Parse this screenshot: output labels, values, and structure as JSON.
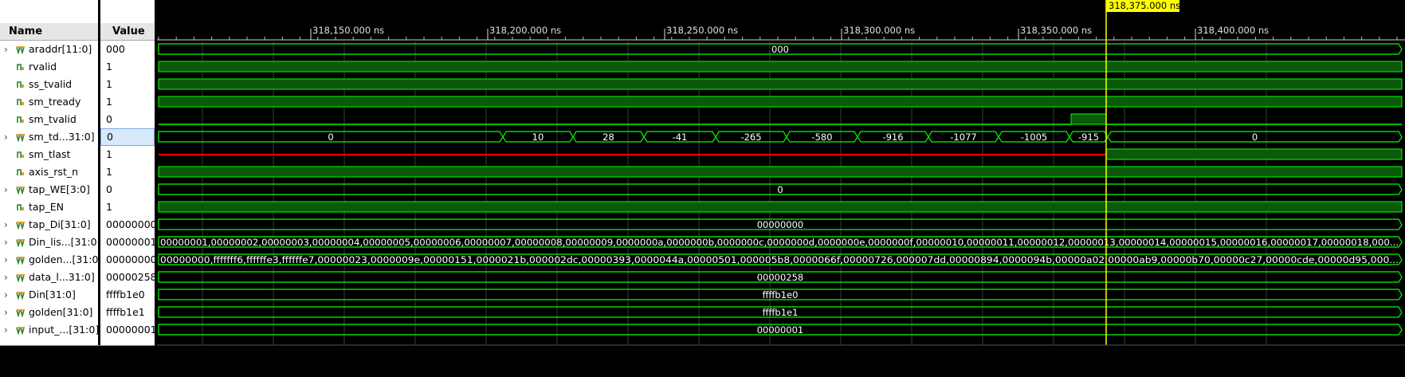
{
  "header": {
    "name_label": "Name",
    "value_label": "Value"
  },
  "timeline": {
    "ticks": [
      {
        "label": "318,150.000 ns"
      },
      {
        "label": "318,200.000 ns"
      },
      {
        "label": "318,250.000 ns"
      },
      {
        "label": "318,300.000 ns"
      },
      {
        "label": "318,350.000 ns"
      },
      {
        "label": "318,400.000 ns"
      }
    ],
    "cursor_label": "318,375.000 ns"
  },
  "colors": {
    "wave": "#00ff00",
    "fill": "#0a5a0a",
    "cursor": "#ffff00",
    "x_state": "#ff0000",
    "selection": "#d8e8fb"
  },
  "signals": [
    {
      "name": "araddr[11:0]",
      "value": "000",
      "kind": "bus",
      "segments": [
        {
          "label": "000"
        }
      ]
    },
    {
      "name": "rvalid",
      "value": "1",
      "kind": "bit",
      "level": 1
    },
    {
      "name": "ss_tvalid",
      "value": "1",
      "kind": "bit",
      "level": 1
    },
    {
      "name": "sm_tready",
      "value": "1",
      "kind": "bit",
      "level": 1
    },
    {
      "name": "sm_tvalid",
      "value": "0",
      "kind": "bit",
      "level": 0
    },
    {
      "name": "sm_td...31:0]",
      "value": "0",
      "kind": "bus",
      "selected": true,
      "segments": [
        {
          "label": "0"
        },
        {
          "label": "10"
        },
        {
          "label": "28"
        },
        {
          "label": "-41"
        },
        {
          "label": "-265"
        },
        {
          "label": "-580"
        },
        {
          "label": "-916"
        },
        {
          "label": "-1077"
        },
        {
          "label": "-1005"
        },
        {
          "label": "-915"
        },
        {
          "label": "0"
        }
      ]
    },
    {
      "name": "sm_tlast",
      "value": "1",
      "kind": "bit",
      "level": 1
    },
    {
      "name": "axis_rst_n",
      "value": "1",
      "kind": "bit",
      "level": 1
    },
    {
      "name": "tap_WE[3:0]",
      "value": "0",
      "kind": "bus",
      "segments": [
        {
          "label": "0"
        }
      ]
    },
    {
      "name": "tap_EN",
      "value": "1",
      "kind": "bit",
      "level": 1
    },
    {
      "name": "tap_Di[31:0]",
      "value": "00000000",
      "kind": "bus",
      "segments": [
        {
          "label": "00000000"
        }
      ]
    },
    {
      "name": "Din_lis...[31:0]",
      "value": "00000001",
      "kind": "bus",
      "segments": [
        {
          "label": "00000001,00000002,00000003,00000004,00000005,00000006,00000007,00000008,00000009,0000000a,0000000b,0000000c,0000000d,0000000e,0000000f,00000010,00000011,00000012,00000013,00000014,00000015,00000016,00000017,00000018,000..."
        }
      ]
    },
    {
      "name": "golden...[31:0]",
      "value": "00000000",
      "kind": "bus",
      "segments": [
        {
          "label": "00000000,fffffff6,ffffffe3,ffffffe7,00000023,0000009e,00000151,0000021b,000002dc,00000393,0000044a,00000501,000005b8,0000066f,00000726,000007dd,00000894,0000094b,00000a02,00000ab9,00000b70,00000c27,00000cde,00000d95,000..."
        }
      ]
    },
    {
      "name": "data_l...31:0]",
      "value": "00000258",
      "kind": "bus",
      "segments": [
        {
          "label": "00000258"
        }
      ]
    },
    {
      "name": "Din[31:0]",
      "value": "ffffb1e0",
      "kind": "bus",
      "segments": [
        {
          "label": "ffffb1e0"
        }
      ]
    },
    {
      "name": "golden[31:0]",
      "value": "ffffb1e1",
      "kind": "bus",
      "segments": [
        {
          "label": "ffffb1e1"
        }
      ]
    },
    {
      "name": "input_...[31:0]",
      "value": "00000001",
      "kind": "bus",
      "segments": [
        {
          "label": "00000001"
        }
      ]
    }
  ]
}
